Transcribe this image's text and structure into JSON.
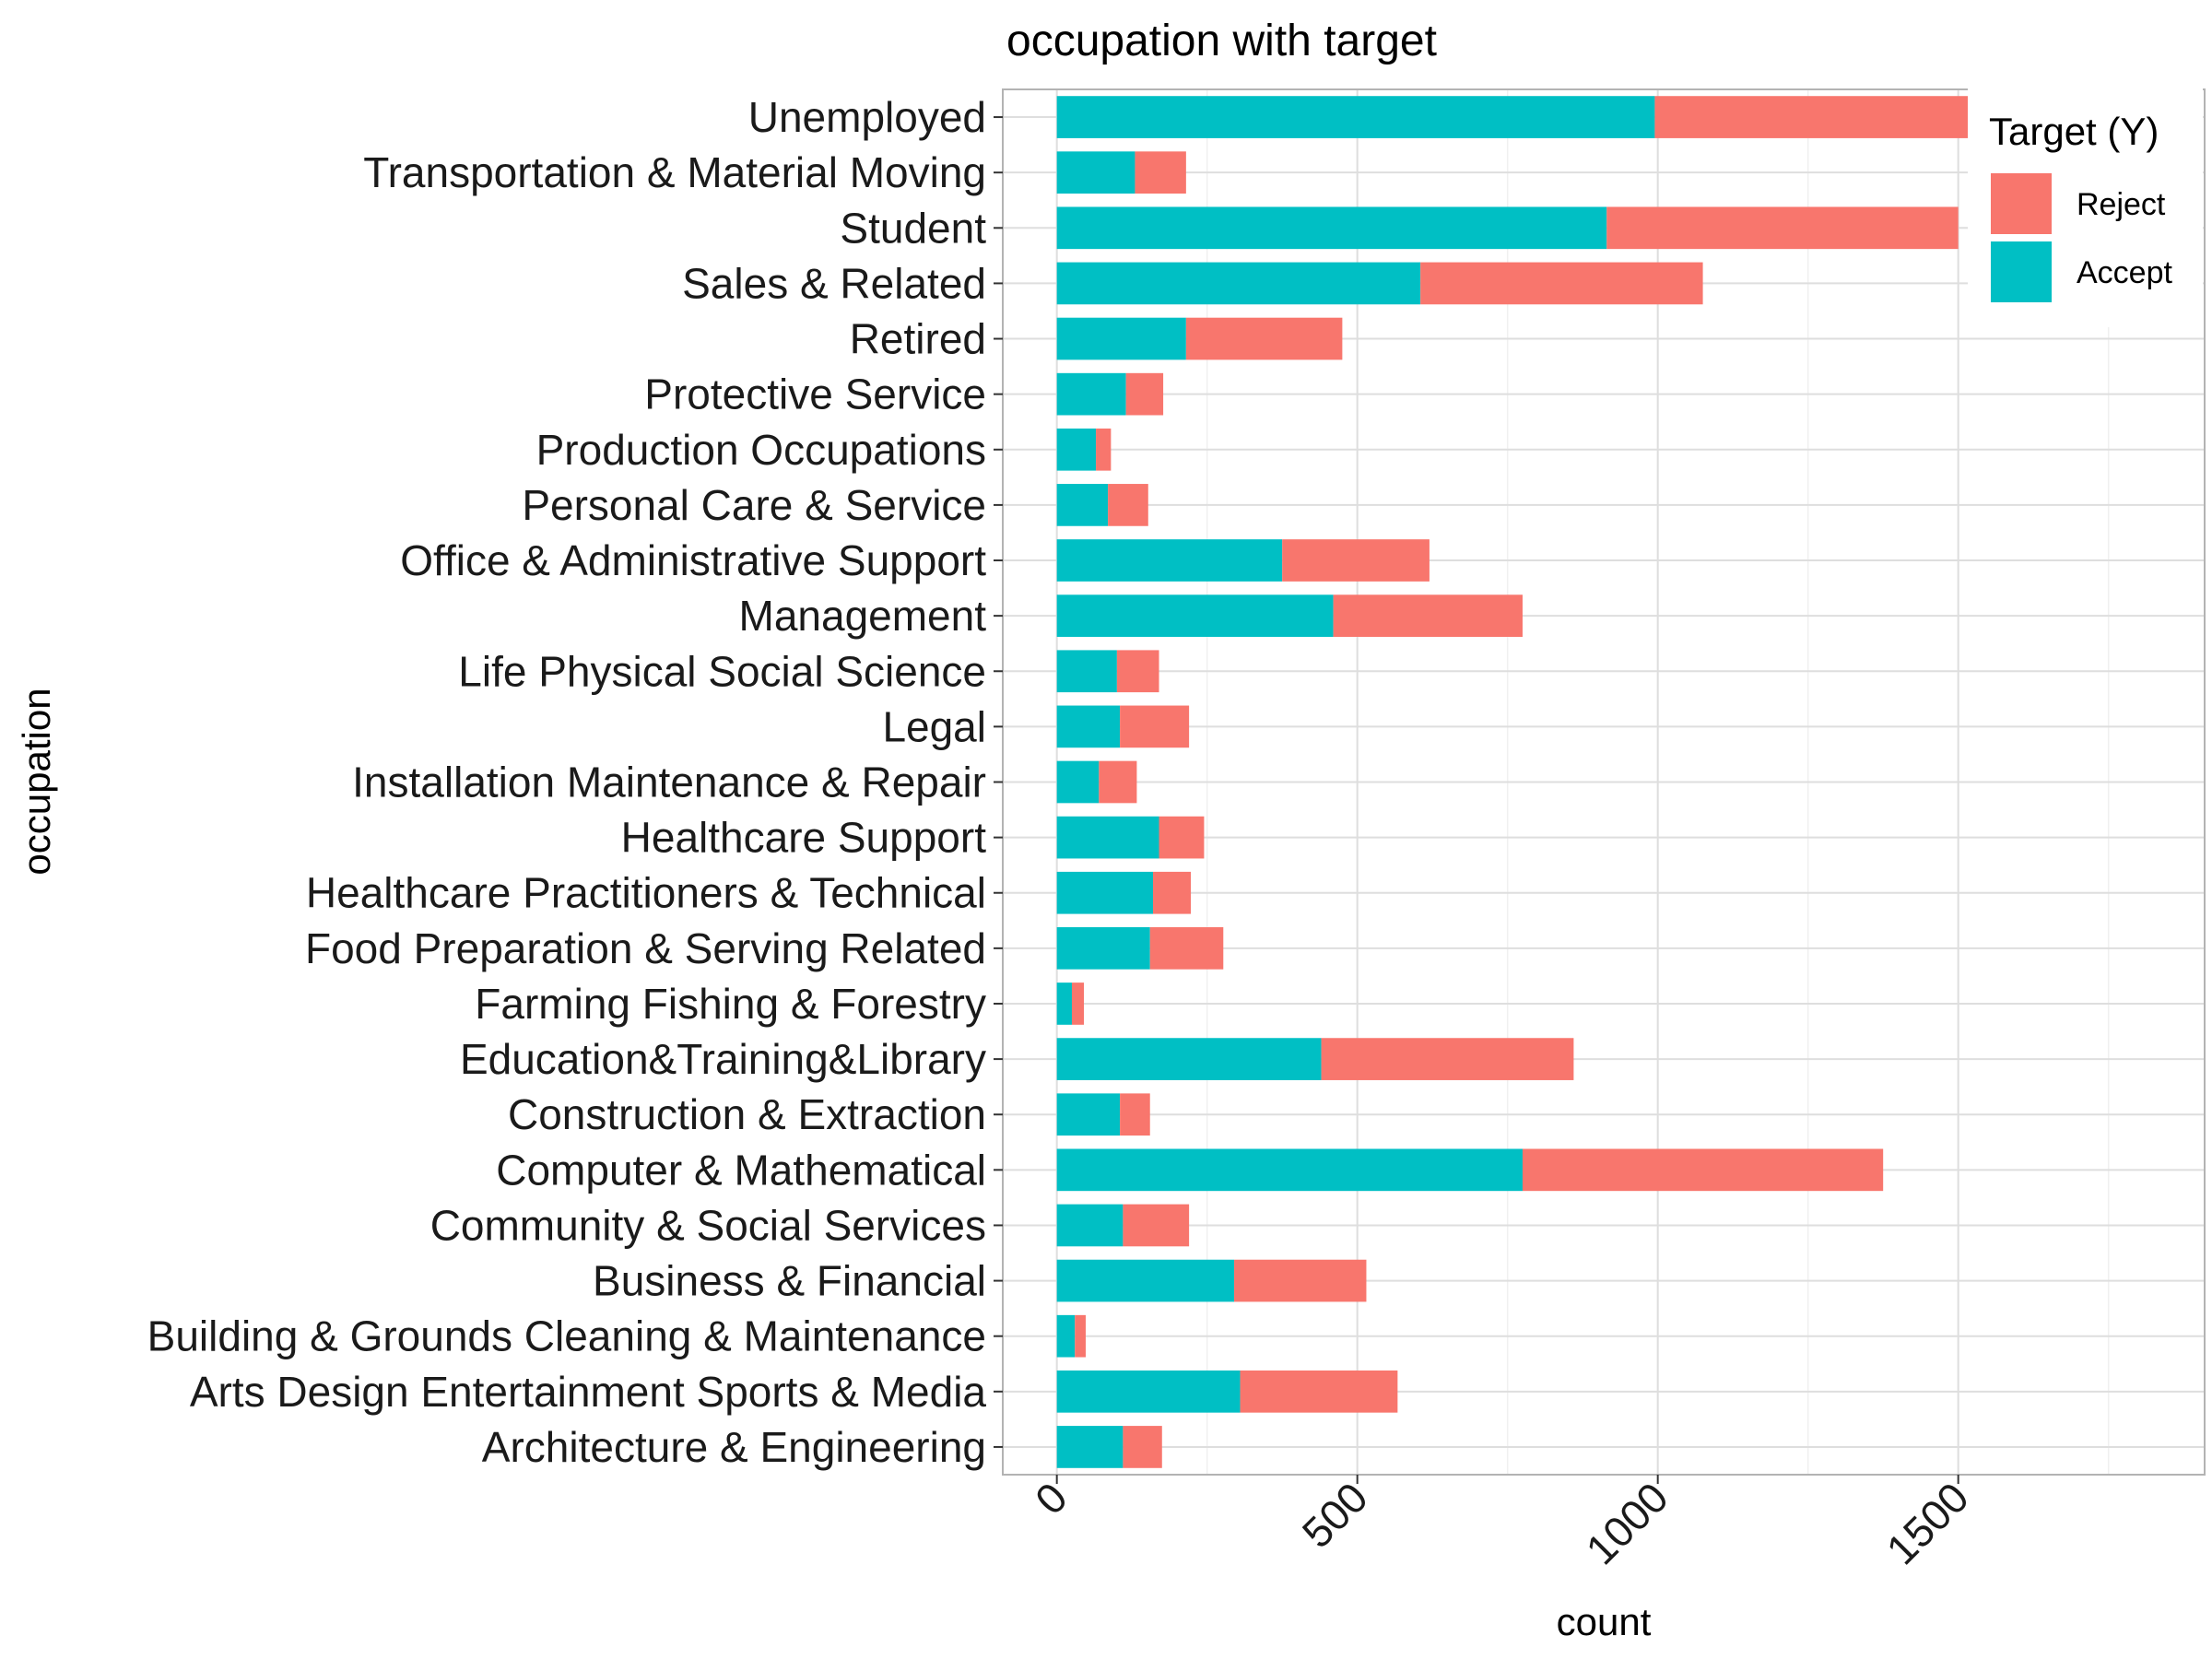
{
  "chart_data": {
    "type": "bar",
    "orientation": "horizontal",
    "stacked": true,
    "title": "occupation with target",
    "xlabel": "count",
    "ylabel": "occupation",
    "xlim": [
      -90,
      1910
    ],
    "xticks": [
      0,
      500,
      1000,
      1500
    ],
    "grid": true,
    "legend_position": "top-right",
    "legend": {
      "title": "Target (Y)",
      "entries": [
        {
          "name": "Reject",
          "color": "#F8766D"
        },
        {
          "name": "Accept",
          "color": "#00BFC4"
        }
      ]
    },
    "categories": [
      "Unemployed",
      "Transportation & Material Moving",
      "Student",
      "Sales & Related",
      "Retired",
      "Protective Service",
      "Production Occupations",
      "Personal Care & Service",
      "Office & Administrative Support",
      "Management",
      "Life Physical Social Science",
      "Legal",
      "Installation Maintenance & Repair",
      "Healthcare Support",
      "Healthcare Practitioners & Technical",
      "Food Preparation & Serving Related",
      "Farming Fishing & Forestry",
      "Education&Training&Library",
      "Construction & Extraction",
      "Computer & Mathematical",
      "Community & Social Services",
      "Business & Financial",
      "Building & Grounds Cleaning & Maintenance",
      "Arts Design Entertainment Sports & Media",
      "Architecture & Engineering"
    ],
    "series": [
      {
        "name": "Accept",
        "color": "#00BFC4",
        "values": [
          995,
          130,
          915,
          605,
          215,
          115,
          65,
          85,
          375,
          460,
          100,
          105,
          70,
          170,
          160,
          155,
          25,
          440,
          105,
          775,
          110,
          295,
          30,
          305,
          110
        ]
      },
      {
        "name": "Reject",
        "color": "#F8766D",
        "values": [
          880,
          85,
          585,
          470,
          260,
          62,
          25,
          67,
          245,
          315,
          70,
          115,
          63,
          75,
          63,
          122,
          20,
          420,
          50,
          600,
          110,
          220,
          18,
          262,
          65
        ]
      }
    ]
  }
}
